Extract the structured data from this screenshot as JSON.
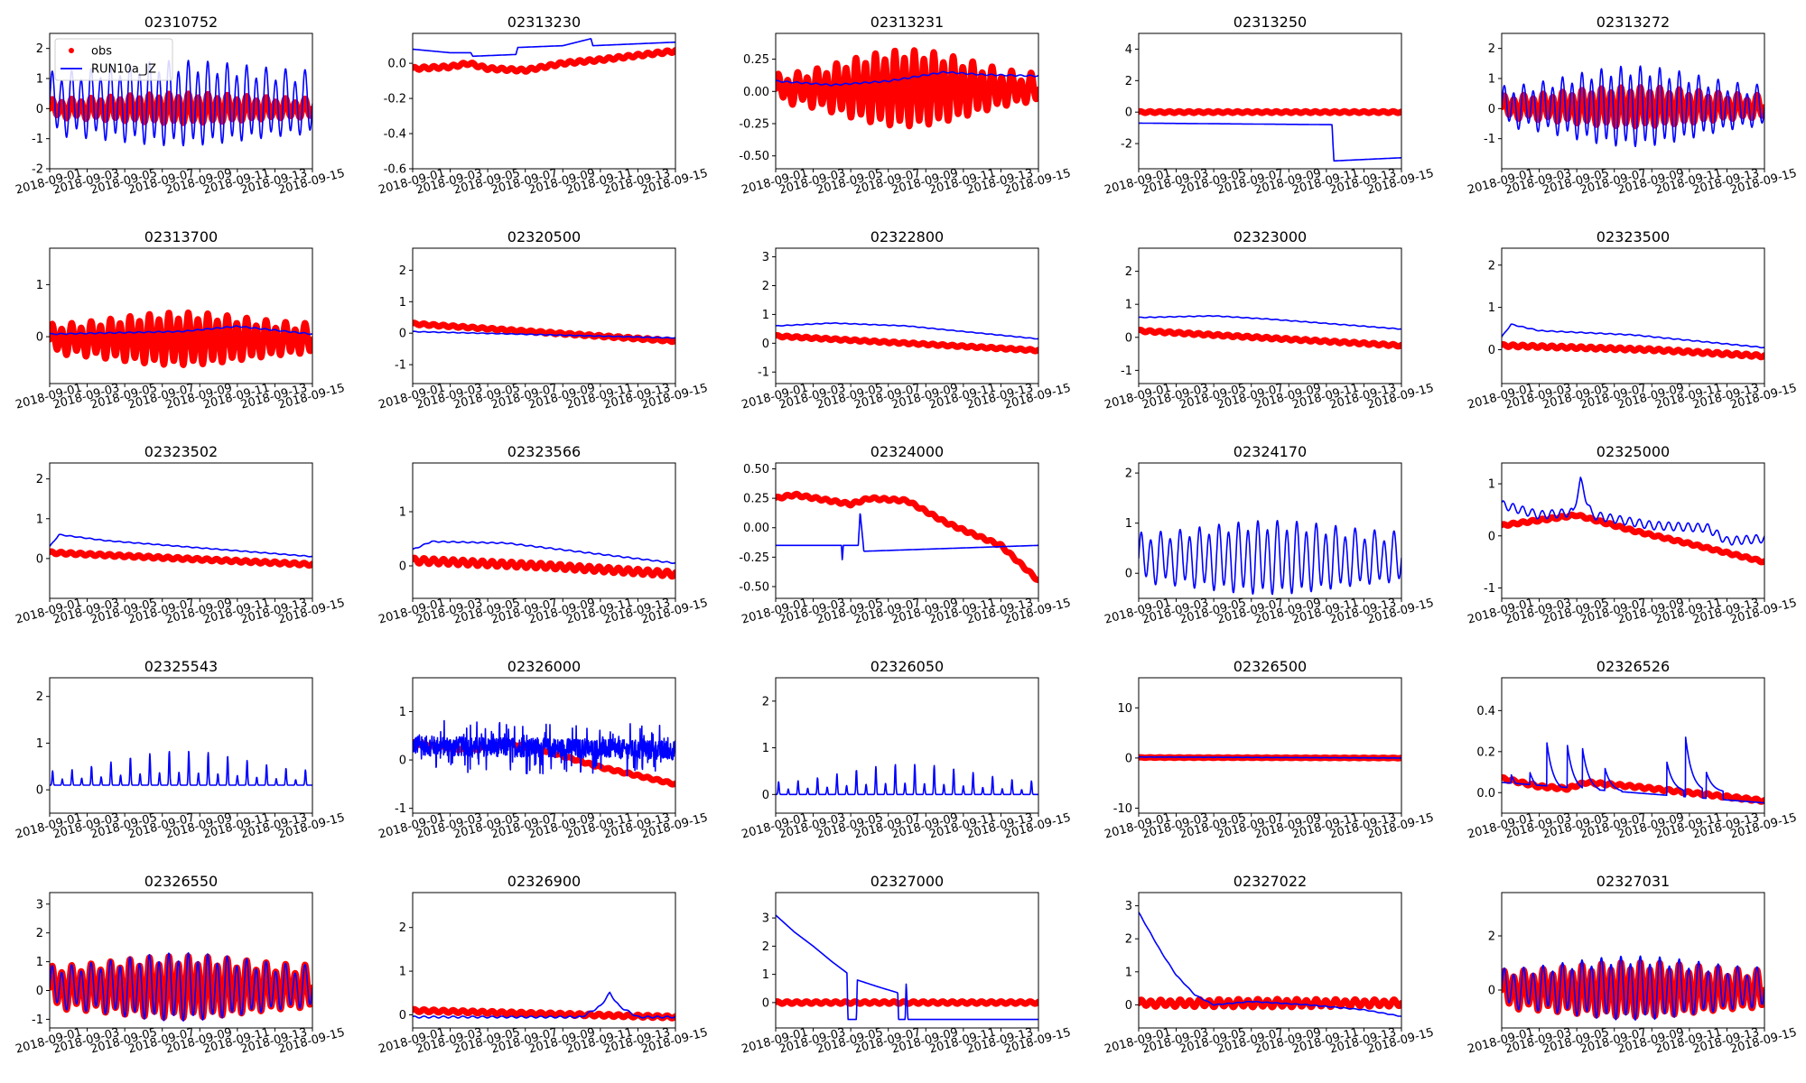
{
  "figure": {
    "x_tick_labels": [
      "2018-09-01",
      "2018-09-03",
      "2018-09-05",
      "2018-09-07",
      "2018-09-09",
      "2018-09-11",
      "2018-09-13",
      "2018-09-15"
    ],
    "x_range_days": [
      0,
      14
    ],
    "legend": {
      "entries": [
        "obs",
        "RUN10a_JZ"
      ],
      "placement": "upper-left of first panel"
    },
    "colors": {
      "obs": "#ff0000",
      "model": "#0000ff"
    }
  },
  "chart_data": [
    {
      "type": "line",
      "title": "02310752",
      "ylim": [
        -2,
        2.5
      ],
      "yticks": [
        -2,
        -1,
        0,
        1,
        2
      ],
      "obs": {
        "kind": "tidal",
        "base": 0,
        "amp": 0.35,
        "mod": 0.25
      },
      "model": {
        "kind": "tidal",
        "base": 0.15,
        "amp": 1.1,
        "mod": 0.15
      }
    },
    {
      "type": "line",
      "title": "02313230",
      "ylim": [
        -0.6,
        0.17
      ],
      "yticks": [
        -0.6,
        -0.4,
        -0.2,
        0.0
      ],
      "yfmt": 1,
      "obs": {
        "kind": "trend",
        "pts": [
          [
            0,
            -0.03
          ],
          [
            2,
            -0.02
          ],
          [
            3,
            0.0
          ],
          [
            4,
            -0.03
          ],
          [
            6,
            -0.04
          ],
          [
            8,
            0.0
          ],
          [
            10,
            0.02
          ],
          [
            14,
            0.07
          ]
        ],
        "noise": 0.008
      },
      "model": {
        "kind": "steps",
        "pts": [
          [
            0,
            0.08
          ],
          [
            2,
            0.06
          ],
          [
            3.1,
            0.06
          ],
          [
            3.2,
            0.04
          ],
          [
            5.5,
            0.05
          ],
          [
            5.6,
            0.09
          ],
          [
            8,
            0.1
          ],
          [
            9.5,
            0.14
          ],
          [
            9.6,
            0.1
          ],
          [
            14,
            0.12
          ]
        ]
      }
    },
    {
      "type": "line",
      "title": "02313231",
      "ylim": [
        -0.6,
        0.45
      ],
      "yticks": [
        -0.5,
        -0.25,
        0.0,
        0.25
      ],
      "yfmt": 2,
      "obs": {
        "kind": "tidal",
        "base": 0.02,
        "amp": 0.18,
        "mod": 0.5
      },
      "model": {
        "kind": "trend",
        "pts": [
          [
            0,
            0.08
          ],
          [
            3,
            0.05
          ],
          [
            6,
            0.08
          ],
          [
            9,
            0.15
          ],
          [
            11,
            0.13
          ],
          [
            14,
            0.12
          ]
        ],
        "noise": 0.005
      }
    },
    {
      "type": "line",
      "title": "02313250",
      "ylim": [
        -3.6,
        5
      ],
      "yticks": [
        -2,
        0,
        2,
        4
      ],
      "obs": {
        "kind": "trend",
        "pts": [
          [
            0,
            0.0
          ],
          [
            14,
            0.0
          ]
        ],
        "noise": 0.05
      },
      "model": {
        "kind": "steps",
        "pts": [
          [
            0,
            -0.7
          ],
          [
            10.3,
            -0.8
          ],
          [
            10.4,
            -3.1
          ],
          [
            14,
            -2.9
          ]
        ]
      }
    },
    {
      "type": "line",
      "title": "02313272",
      "ylim": [
        -2,
        2.5
      ],
      "yticks": [
        -1,
        0,
        1,
        2
      ],
      "obs": {
        "kind": "tidal",
        "base": 0.05,
        "amp": 0.45,
        "mod": 0.3
      },
      "model": {
        "kind": "tidal",
        "base": 0.05,
        "amp": 0.9,
        "mod": 0.35
      }
    },
    {
      "type": "line",
      "title": "02313700",
      "ylim": [
        -0.9,
        1.7
      ],
      "yticks": [
        0,
        1
      ],
      "obs": {
        "kind": "tidal",
        "base": -0.05,
        "amp": 0.35,
        "mod": 0.3
      },
      "model": {
        "kind": "trend",
        "pts": [
          [
            0,
            0.05
          ],
          [
            7,
            0.1
          ],
          [
            10,
            0.2
          ],
          [
            14,
            0.05
          ]
        ],
        "noise": 0.01
      }
    },
    {
      "type": "line",
      "title": "02320500",
      "ylim": [
        -1.6,
        2.7
      ],
      "yticks": [
        -1,
        0,
        1,
        2
      ],
      "obs": {
        "kind": "trend",
        "pts": [
          [
            0,
            0.3
          ],
          [
            14,
            -0.25
          ]
        ],
        "noise": 0.03
      },
      "model": {
        "kind": "trend",
        "pts": [
          [
            0,
            0.05
          ],
          [
            14,
            -0.15
          ]
        ],
        "noise": 0.01
      }
    },
    {
      "type": "line",
      "title": "02322800",
      "ylim": [
        -1.4,
        3.3
      ],
      "yticks": [
        -1,
        0,
        1,
        2,
        3
      ],
      "obs": {
        "kind": "trend",
        "pts": [
          [
            0,
            0.25
          ],
          [
            14,
            -0.25
          ]
        ],
        "noise": 0.03
      },
      "model": {
        "kind": "trend",
        "pts": [
          [
            0,
            0.6
          ],
          [
            3,
            0.7
          ],
          [
            7,
            0.6
          ],
          [
            14,
            0.15
          ]
        ],
        "noise": 0.01
      }
    },
    {
      "type": "line",
      "title": "02323000",
      "ylim": [
        -1.4,
        2.7
      ],
      "yticks": [
        -1,
        0,
        1,
        2
      ],
      "obs": {
        "kind": "trend",
        "pts": [
          [
            0,
            0.2
          ],
          [
            14,
            -0.25
          ]
        ],
        "noise": 0.03
      },
      "model": {
        "kind": "trend",
        "pts": [
          [
            0,
            0.6
          ],
          [
            4,
            0.65
          ],
          [
            7,
            0.55
          ],
          [
            14,
            0.25
          ]
        ],
        "noise": 0.01
      }
    },
    {
      "type": "line",
      "title": "02323500",
      "ylim": [
        -0.8,
        2.4
      ],
      "yticks": [
        0,
        1,
        2
      ],
      "obs": {
        "kind": "trend",
        "pts": [
          [
            0,
            0.1
          ],
          [
            8,
            0.0
          ],
          [
            14,
            -0.15
          ]
        ],
        "noise": 0.03
      },
      "model": {
        "kind": "trend",
        "pts": [
          [
            0,
            0.3
          ],
          [
            0.5,
            0.6
          ],
          [
            2,
            0.45
          ],
          [
            7,
            0.35
          ],
          [
            14,
            0.05
          ]
        ],
        "noise": 0.01
      }
    },
    {
      "type": "line",
      "title": "02323502",
      "ylim": [
        -1,
        2.4
      ],
      "yticks": [
        0,
        1,
        2
      ],
      "obs": {
        "kind": "trend",
        "pts": [
          [
            0,
            0.15
          ],
          [
            14,
            -0.15
          ]
        ],
        "noise": 0.03
      },
      "model": {
        "kind": "trend",
        "pts": [
          [
            0,
            0.3
          ],
          [
            0.5,
            0.6
          ],
          [
            3,
            0.45
          ],
          [
            14,
            0.05
          ]
        ],
        "noise": 0.01
      }
    },
    {
      "type": "line",
      "title": "02323566",
      "ylim": [
        -0.6,
        1.9
      ],
      "yticks": [
        0,
        1
      ],
      "obs": {
        "kind": "trend",
        "pts": [
          [
            0,
            0.1
          ],
          [
            7,
            0.0
          ],
          [
            14,
            -0.15
          ]
        ],
        "noise": 0.05
      },
      "model": {
        "kind": "trend",
        "pts": [
          [
            0,
            0.3
          ],
          [
            1,
            0.45
          ],
          [
            5,
            0.42
          ],
          [
            14,
            0.05
          ]
        ],
        "noise": 0.01
      }
    },
    {
      "type": "line",
      "title": "02324000",
      "ylim": [
        -0.6,
        0.55
      ],
      "yticks": [
        -0.5,
        -0.25,
        0.0,
        0.25,
        0.5
      ],
      "yfmt": 2,
      "obs": {
        "kind": "trend",
        "pts": [
          [
            0,
            0.25
          ],
          [
            1,
            0.28
          ],
          [
            4,
            0.2
          ],
          [
            5,
            0.25
          ],
          [
            7,
            0.23
          ],
          [
            9,
            0.05
          ],
          [
            10,
            -0.02
          ],
          [
            12,
            -0.15
          ],
          [
            14,
            -0.45
          ]
        ],
        "noise": 0.01
      },
      "model": {
        "kind": "steps",
        "pts": [
          [
            0,
            -0.15
          ],
          [
            3.5,
            -0.15
          ],
          [
            3.55,
            -0.28
          ],
          [
            3.6,
            -0.15
          ],
          [
            4.4,
            -0.15
          ],
          [
            4.5,
            0.13
          ],
          [
            4.7,
            -0.2
          ],
          [
            14,
            -0.15
          ]
        ]
      }
    },
    {
      "type": "line",
      "title": "02324170",
      "ylim": [
        -0.5,
        2.2
      ],
      "yticks": [
        0,
        1,
        2
      ],
      "obs": {
        "kind": "none"
      },
      "model": {
        "kind": "tidal",
        "base": 0.3,
        "amp": 0.55,
        "mod": 0.2
      }
    },
    {
      "type": "line",
      "title": "02325000",
      "ylim": [
        -1.2,
        1.4
      ],
      "yticks": [
        -1,
        0,
        1
      ],
      "obs": {
        "kind": "trend",
        "pts": [
          [
            0,
            0.2
          ],
          [
            2,
            0.3
          ],
          [
            4,
            0.4
          ],
          [
            7,
            0.1
          ],
          [
            10,
            -0.15
          ],
          [
            14,
            -0.5
          ]
        ],
        "noise": 0.02
      },
      "model": {
        "kind": "trend",
        "pts": [
          [
            0,
            0.6
          ],
          [
            2,
            0.4
          ],
          [
            3.8,
            0.45
          ],
          [
            4.2,
            1.05
          ],
          [
            4.8,
            0.4
          ],
          [
            8,
            0.2
          ],
          [
            11,
            0.15
          ],
          [
            12,
            -0.1
          ],
          [
            14,
            -0.05
          ]
        ],
        "noise": 0.08
      }
    },
    {
      "type": "line",
      "title": "02325543",
      "ylim": [
        -0.5,
        2.4
      ],
      "yticks": [
        0,
        1,
        2
      ],
      "obs": {
        "kind": "none"
      },
      "model": {
        "kind": "pulse",
        "base": 0.1,
        "amp": 0.45,
        "mod": 0.4
      }
    },
    {
      "type": "line",
      "title": "02326000",
      "ylim": [
        -1.1,
        1.7
      ],
      "yticks": [
        -1,
        0,
        1
      ],
      "obs": {
        "kind": "trend",
        "pts": [
          [
            0,
            0.35
          ],
          [
            3,
            0.2
          ],
          [
            5,
            0.35
          ],
          [
            7,
            0.2
          ],
          [
            10,
            -0.15
          ],
          [
            14,
            -0.5
          ]
        ],
        "noise": 0.02
      },
      "model": {
        "kind": "noisy",
        "base": 0.3,
        "amp": 0.5
      }
    },
    {
      "type": "line",
      "title": "02326050",
      "ylim": [
        -0.4,
        2.5
      ],
      "yticks": [
        0,
        1,
        2
      ],
      "obs": {
        "kind": "none"
      },
      "model": {
        "kind": "pulse",
        "base": 0.0,
        "amp": 0.4,
        "mod": 0.4
      }
    },
    {
      "type": "line",
      "title": "02326500",
      "ylim": [
        -11,
        16
      ],
      "yticks": [
        -10,
        0,
        10
      ],
      "obs": {
        "kind": "trend",
        "pts": [
          [
            0,
            0.1
          ],
          [
            14,
            0.0
          ]
        ],
        "noise": 0.05
      },
      "model": {
        "kind": "trend",
        "pts": [
          [
            0,
            0.2
          ],
          [
            14,
            0.0
          ]
        ],
        "noise": 0.02
      }
    },
    {
      "type": "line",
      "title": "02326526",
      "ylim": [
        -0.1,
        0.56
      ],
      "yticks": [
        0.0,
        0.2,
        0.4
      ],
      "yfmt": 1,
      "obs": {
        "kind": "trend",
        "pts": [
          [
            0,
            0.07
          ],
          [
            2,
            0.03
          ],
          [
            3.5,
            0.02
          ],
          [
            4.5,
            0.05
          ],
          [
            7,
            0.03
          ],
          [
            10,
            0.0
          ],
          [
            14,
            -0.04
          ]
        ],
        "noise": 0.006
      },
      "model": {
        "kind": "spikes",
        "base": 0.05,
        "spikes": [
          [
            0.5,
            0.09
          ],
          [
            1.5,
            0.1
          ],
          [
            2.4,
            0.25
          ],
          [
            3.5,
            0.23
          ],
          [
            4.3,
            0.22
          ],
          [
            5.5,
            0.12
          ],
          [
            8.8,
            0.15
          ],
          [
            9.8,
            0.27
          ],
          [
            10.9,
            0.1
          ]
        ]
      }
    },
    {
      "type": "line",
      "title": "02326550",
      "ylim": [
        -1.3,
        3.4
      ],
      "yticks": [
        -1,
        0,
        1,
        2,
        3
      ],
      "obs": {
        "kind": "tidal",
        "base": 0.1,
        "amp": 0.8,
        "mod": 0.2
      },
      "model": {
        "kind": "tidal",
        "base": 0.1,
        "amp": 0.85,
        "mod": 0.25
      }
    },
    {
      "type": "line",
      "title": "02326900",
      "ylim": [
        -0.3,
        2.8
      ],
      "yticks": [
        0,
        1,
        2
      ],
      "obs": {
        "kind": "trend",
        "pts": [
          [
            0,
            0.1
          ],
          [
            14,
            -0.05
          ]
        ],
        "noise": 0.03
      },
      "model": {
        "kind": "trend",
        "pts": [
          [
            0,
            -0.05
          ],
          [
            9,
            -0.05
          ],
          [
            10,
            0.2
          ],
          [
            10.5,
            0.5
          ],
          [
            11,
            0.2
          ],
          [
            12,
            -0.05
          ],
          [
            14,
            -0.05
          ]
        ],
        "noise": 0.02
      }
    },
    {
      "type": "line",
      "title": "02327000",
      "ylim": [
        -0.9,
        3.9
      ],
      "yticks": [
        0,
        1,
        2,
        3
      ],
      "obs": {
        "kind": "trend",
        "pts": [
          [
            0,
            0.0
          ],
          [
            14,
            0.0
          ]
        ],
        "noise": 0.04
      },
      "model": {
        "kind": "steps",
        "pts": [
          [
            0,
            3.1
          ],
          [
            1,
            2.5
          ],
          [
            2,
            2.0
          ],
          [
            3,
            1.45
          ],
          [
            3.8,
            1.05
          ],
          [
            3.85,
            -0.6
          ],
          [
            4.3,
            -0.6
          ],
          [
            4.35,
            0.8
          ],
          [
            5.5,
            0.55
          ],
          [
            6.5,
            0.35
          ],
          [
            6.55,
            -0.6
          ],
          [
            6.9,
            -0.6
          ],
          [
            6.95,
            0.7
          ],
          [
            7.05,
            -0.6
          ],
          [
            14,
            -0.6
          ]
        ]
      }
    },
    {
      "type": "line",
      "title": "02327022",
      "ylim": [
        -0.7,
        3.4
      ],
      "yticks": [
        0,
        1,
        2,
        3
      ],
      "obs": {
        "kind": "tidal",
        "base": 0.05,
        "amp": 0.1,
        "mod": 0.1
      },
      "model": {
        "kind": "trend",
        "pts": [
          [
            0,
            2.8
          ],
          [
            0.6,
            2.2
          ],
          [
            1.2,
            1.6
          ],
          [
            2,
            0.9
          ],
          [
            3,
            0.3
          ],
          [
            4,
            0.0
          ],
          [
            6,
            0.1
          ],
          [
            9,
            0.0
          ],
          [
            12,
            -0.15
          ],
          [
            14,
            -0.35
          ]
        ],
        "noise": 0.01
      }
    },
    {
      "type": "line",
      "title": "02327031",
      "ylim": [
        -1.4,
        3.6
      ],
      "yticks": [
        0,
        2
      ],
      "obs": {
        "kind": "tidal",
        "base": 0.0,
        "amp": 0.75,
        "mod": 0.2
      },
      "model": {
        "kind": "tidal",
        "base": 0.05,
        "amp": 0.85,
        "mod": 0.25
      }
    }
  ]
}
